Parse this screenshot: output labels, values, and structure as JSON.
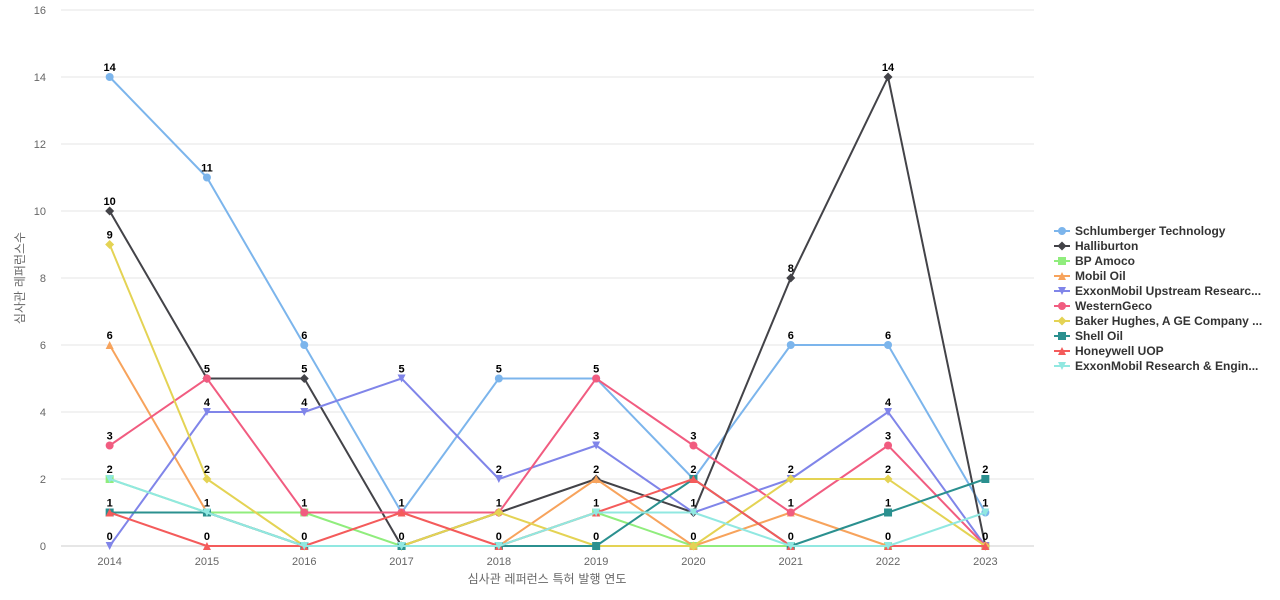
{
  "chart_data": {
    "type": "line",
    "title": "",
    "xlabel": "심사관 레퍼런스 특허 발행 연도",
    "ylabel": "심사관 레퍼런스수",
    "x": [
      "2014",
      "2015",
      "2016",
      "2017",
      "2018",
      "2019",
      "2020",
      "2021",
      "2022",
      "2023"
    ],
    "ylim": [
      0,
      16
    ],
    "yticks": [
      0,
      2,
      4,
      6,
      8,
      10,
      12,
      14,
      16
    ],
    "grid": true,
    "legend_position": "right",
    "series": [
      {
        "name": "Schlumberger Technology",
        "color": "#7cb5ec",
        "marker": "circle",
        "values": [
          14,
          11,
          6,
          1,
          5,
          5,
          2,
          6,
          6,
          1
        ]
      },
      {
        "name": "Halliburton",
        "color": "#434348",
        "marker": "diamond",
        "values": [
          10,
          5,
          5,
          0,
          1,
          2,
          1,
          8,
          14,
          0
        ]
      },
      {
        "name": "BP Amoco",
        "color": "#90ed7d",
        "marker": "square",
        "values": [
          2,
          1,
          1,
          0,
          0,
          1,
          0,
          0,
          0,
          0
        ]
      },
      {
        "name": "Mobil Oil",
        "color": "#f7a35c",
        "marker": "triangle",
        "values": [
          6,
          1,
          0,
          0,
          0,
          2,
          0,
          1,
          0,
          0
        ]
      },
      {
        "name": "ExxonMobil Upstream Researc...",
        "color": "#8085e9",
        "marker": "triangle-down",
        "values": [
          0,
          4,
          4,
          5,
          2,
          3,
          1,
          2,
          4,
          0
        ]
      },
      {
        "name": "WesternGeco",
        "color": "#f15c80",
        "marker": "circle",
        "values": [
          3,
          5,
          1,
          1,
          1,
          5,
          3,
          1,
          3,
          0
        ]
      },
      {
        "name": "Baker Hughes, A GE Company ...",
        "color": "#e4d354",
        "marker": "diamond",
        "values": [
          9,
          2,
          0,
          0,
          1,
          0,
          0,
          2,
          2,
          0
        ]
      },
      {
        "name": "Shell Oil",
        "color": "#2b908f",
        "marker": "square",
        "values": [
          1,
          1,
          0,
          0,
          0,
          0,
          2,
          0,
          1,
          2
        ]
      },
      {
        "name": "Honeywell UOP",
        "color": "#f45b5b",
        "marker": "triangle",
        "values": [
          1,
          0,
          0,
          1,
          0,
          1,
          2,
          0,
          0,
          0
        ]
      },
      {
        "name": "ExxonMobil Research & Engin...",
        "color": "#91e8e1",
        "marker": "triangle-down",
        "values": [
          2,
          1,
          0,
          0,
          0,
          1,
          1,
          0,
          0,
          1
        ]
      }
    ]
  }
}
